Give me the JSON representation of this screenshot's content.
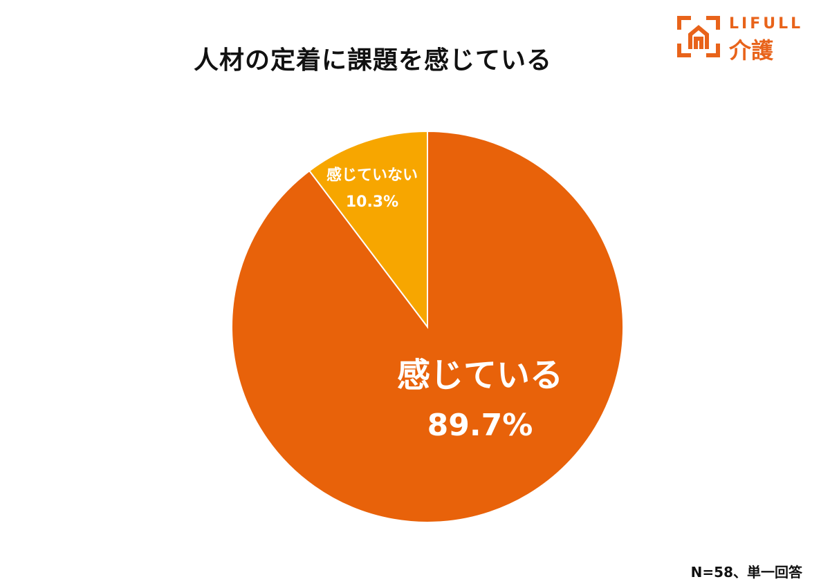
{
  "header": {
    "title": "人材の定着に課題を感じている"
  },
  "logo": {
    "brand": "LIFULL",
    "service": "介護",
    "icon": "house-bracket-icon",
    "color": "#e8631a"
  },
  "footnote": "N=58、単一回答",
  "chart_data": {
    "type": "pie",
    "title": "人材の定着に課題を感じている",
    "start_angle_deg": 0,
    "direction": "clockwise",
    "slices": [
      {
        "name": "感じている",
        "value": 89.7,
        "label": "89.7%",
        "color": "#e8620a"
      },
      {
        "name": "感じていない",
        "value": 10.3,
        "label": "10.3%",
        "color": "#f7a600"
      }
    ],
    "legend": "none",
    "labels_inside": true
  }
}
